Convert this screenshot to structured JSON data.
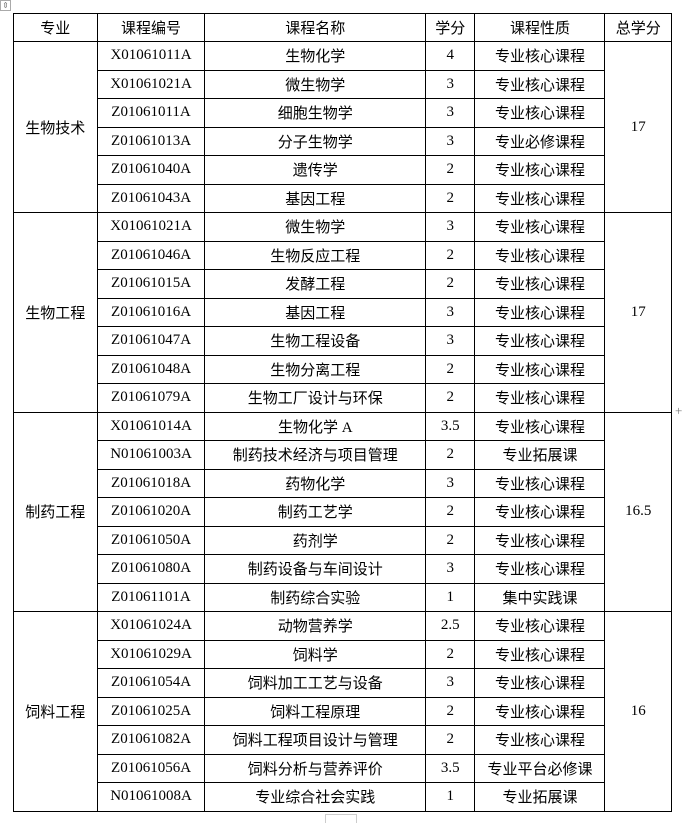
{
  "headers": [
    "专业",
    "课程编号",
    "课程名称",
    "学分",
    "课程性质",
    "总学分"
  ],
  "groups": [
    {
      "major": "生物技术",
      "total": "17",
      "rows": [
        [
          "X01061011A",
          "生物化学",
          "4",
          "专业核心课程"
        ],
        [
          "X01061021A",
          "微生物学",
          "3",
          "专业核心课程"
        ],
        [
          "Z01061011A",
          "细胞生物学",
          "3",
          "专业核心课程"
        ],
        [
          "Z01061013A",
          "分子生物学",
          "3",
          "专业必修课程"
        ],
        [
          "Z01061040A",
          "遗传学",
          "2",
          "专业核心课程"
        ],
        [
          "Z01061043A",
          "基因工程",
          "2",
          "专业核心课程"
        ]
      ]
    },
    {
      "major": "生物工程",
      "total": "17",
      "rows": [
        [
          "X01061021A",
          "微生物学",
          "3",
          "专业核心课程"
        ],
        [
          "Z01061046A",
          "生物反应工程",
          "2",
          "专业核心课程"
        ],
        [
          "Z01061015A",
          "发酵工程",
          "2",
          "专业核心课程"
        ],
        [
          "Z01061016A",
          "基因工程",
          "3",
          "专业核心课程"
        ],
        [
          "Z01061047A",
          "生物工程设备",
          "3",
          "专业核心课程"
        ],
        [
          "Z01061048A",
          "生物分离工程",
          "2",
          "专业核心课程"
        ],
        [
          "Z01061079A",
          "生物工厂设计与环保",
          "2",
          "专业核心课程"
        ]
      ]
    },
    {
      "major": "制药工程",
      "total": "16.5",
      "rows": [
        [
          "X01061014A",
          "生物化学 A",
          "3.5",
          "专业核心课程"
        ],
        [
          "N01061003A",
          "制药技术经济与项目管理",
          "2",
          "专业拓展课"
        ],
        [
          "Z01061018A",
          "药物化学",
          "3",
          "专业核心课程"
        ],
        [
          "Z01061020A",
          "制药工艺学",
          "2",
          "专业核心课程"
        ],
        [
          "Z01061050A",
          "药剂学",
          "2",
          "专业核心课程"
        ],
        [
          "Z01061080A",
          "制药设备与车间设计",
          "3",
          "专业核心课程"
        ],
        [
          "Z01061101A",
          "制药综合实验",
          "1",
          "集中实践课"
        ]
      ]
    },
    {
      "major": "饲料工程",
      "total": "16",
      "rows": [
        [
          "X01061024A",
          "动物营养学",
          "2.5",
          "专业核心课程"
        ],
        [
          "X01061029A",
          "饲料学",
          "2",
          "专业核心课程"
        ],
        [
          "Z01061054A",
          "饲料加工工艺与设备",
          "3",
          "专业核心课程"
        ],
        [
          "Z01061025A",
          "饲料工程原理",
          "2",
          "专业核心课程"
        ],
        [
          "Z01061082A",
          "饲料工程项目设计与管理",
          "2",
          "专业核心课程"
        ],
        [
          "Z01061056A",
          "饲料分析与营养评价",
          "3.5",
          "专业平台必修课"
        ],
        [
          "N01061008A",
          "专业综合社会实践",
          "1",
          "专业拓展课"
        ]
      ]
    }
  ]
}
